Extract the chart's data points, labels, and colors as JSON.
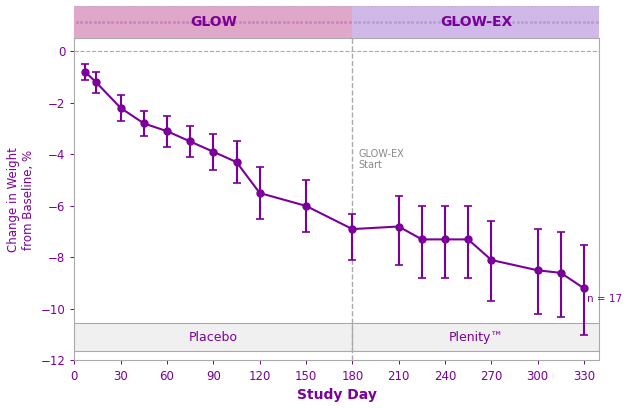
{
  "x_values": [
    7,
    14,
    30,
    45,
    60,
    75,
    90,
    105,
    120,
    150,
    180,
    210,
    225,
    240,
    255,
    270,
    300,
    315,
    330
  ],
  "y_values": [
    -0.8,
    -1.2,
    -2.2,
    -2.8,
    -3.1,
    -3.5,
    -3.9,
    -4.3,
    -5.5,
    -6.0,
    -6.9,
    -6.8,
    -7.3,
    -7.3,
    -7.3,
    -8.1,
    -8.5,
    -8.6,
    -9.2
  ],
  "y_err_low": [
    0.3,
    0.4,
    0.5,
    0.5,
    0.6,
    0.6,
    0.7,
    0.8,
    1.0,
    1.0,
    1.2,
    1.5,
    1.5,
    1.5,
    1.5,
    1.6,
    1.7,
    1.7,
    1.8
  ],
  "y_err_high": [
    0.3,
    0.4,
    0.5,
    0.5,
    0.6,
    0.6,
    0.7,
    0.8,
    1.0,
    1.0,
    0.6,
    1.2,
    1.3,
    1.3,
    1.3,
    1.5,
    1.6,
    1.6,
    1.7
  ],
  "line_color": "#7B0099",
  "marker_color": "#7B0099",
  "glow_bg_color": "#E0A8C8",
  "glow_ex_bg_color": "#D0B8E8",
  "glow_dot_color": "#CC88BB",
  "glow_ex_dot_color": "#B8A0D8",
  "glow_text_color": "#7B0099",
  "glow_ex_text_color": "#7B0099",
  "bottom_bar_facecolor": "#F0F0F0",
  "bottom_bar_edgecolor": "#AAAAAA",
  "bottom_text_color": "#7B0099",
  "xlabel": "Study Day",
  "ylabel": "Change in Weight\nfrom Baseline, %",
  "xlabel_color": "#7B0099",
  "ylabel_color": "#7B0099",
  "xlim": [
    0,
    340
  ],
  "ylim": [
    -12,
    0.5
  ],
  "xticks": [
    0,
    30,
    60,
    90,
    120,
    150,
    180,
    210,
    240,
    270,
    300,
    330
  ],
  "yticks": [
    0,
    -2,
    -4,
    -6,
    -8,
    -10,
    -12
  ],
  "split_x": 180,
  "glow_label": "GLOW",
  "glow_ex_label": "GLOW-EX",
  "placebo_label": "Placebo",
  "plenity_label": "Plenity™",
  "annotation_text": "GLOW-EX\nStart",
  "n_label": "n = 17",
  "tick_color": "#7B0099",
  "spine_color": "#AAAAAA",
  "hline_color": "#AAAAAA",
  "vline_color": "#AAAAAA",
  "annotation_color": "#888888",
  "bottom_bar_y": -11.65,
  "bottom_bar_height": 1.1
}
